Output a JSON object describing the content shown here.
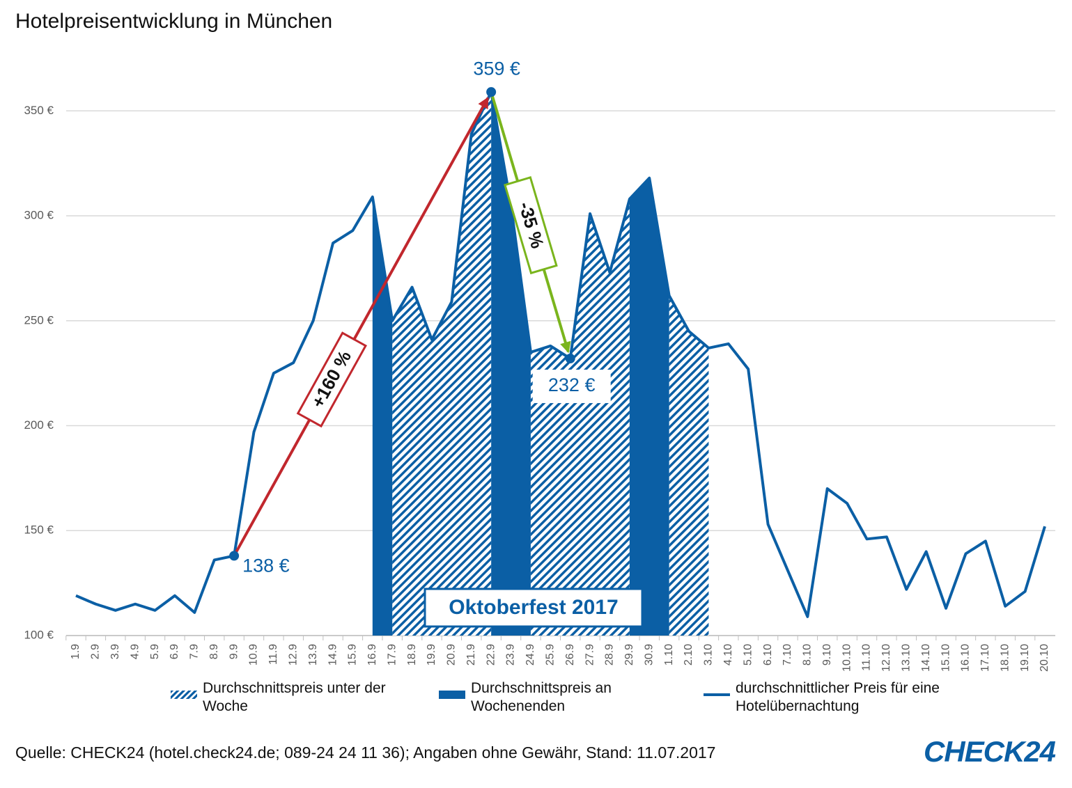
{
  "chart_data": {
    "type": "line",
    "title": "Hotelpreisentwicklung in München",
    "categories": [
      "1.9",
      "2.9",
      "3.9",
      "4.9",
      "5.9",
      "6.9",
      "7.9",
      "8.9",
      "9.9",
      "10.9",
      "11.9",
      "12.9",
      "13.9",
      "14.9",
      "15.9",
      "16.9",
      "17.9",
      "18.9",
      "19.9",
      "20.9",
      "21.9",
      "22.9",
      "23.9",
      "24.9",
      "25.9",
      "26.9",
      "27.9",
      "28.9",
      "29.9",
      "30.9",
      "1.10",
      "2.10",
      "3.10",
      "4.10",
      "5.10",
      "6.10",
      "7.10",
      "8.10",
      "9.10",
      "10.10",
      "11.10",
      "12.10",
      "13.10",
      "14.10",
      "15.10",
      "16.10",
      "17.10",
      "18.10",
      "19.10",
      "20.10"
    ],
    "series": [
      {
        "name": "Durchschnittspreis unter der Woche",
        "type": "area",
        "pattern": "hatch",
        "color": "#0b5fa5",
        "values": [
          null,
          null,
          null,
          null,
          null,
          null,
          null,
          null,
          null,
          null,
          null,
          null,
          null,
          null,
          null,
          null,
          250,
          266,
          241,
          259,
          339,
          359,
          null,
          235,
          238,
          232,
          301,
          273,
          308,
          null,
          262,
          245,
          237,
          null,
          null,
          null,
          null,
          null,
          null,
          null,
          null,
          null,
          null,
          null,
          null,
          null,
          null,
          null,
          null,
          null
        ]
      },
      {
        "name": "Durchschnittspreis an Wochenenden",
        "type": "area",
        "pattern": "solid",
        "color": "#0b5fa5",
        "values": [
          null,
          null,
          null,
          null,
          null,
          null,
          null,
          null,
          null,
          null,
          null,
          null,
          null,
          null,
          null,
          309,
          250,
          null,
          null,
          null,
          null,
          359,
          305,
          235,
          null,
          null,
          null,
          null,
          308,
          318,
          262,
          null,
          null,
          null,
          null,
          null,
          null,
          null,
          null,
          null,
          null,
          null,
          null,
          null,
          null,
          null,
          null,
          null,
          null,
          null
        ]
      },
      {
        "name": "durchschnittlicher Preis für eine Hotelübernachtung",
        "type": "line",
        "color": "#0b5fa5",
        "values": [
          119,
          115,
          112,
          115,
          112,
          119,
          111,
          136,
          138,
          197,
          225,
          230,
          250,
          287,
          293,
          309,
          250,
          266,
          241,
          259,
          339,
          359,
          305,
          235,
          238,
          232,
          301,
          273,
          308,
          318,
          262,
          245,
          237,
          239,
          227,
          153,
          131,
          109,
          170,
          163,
          146,
          147,
          122,
          140,
          113,
          139,
          145,
          114,
          121,
          152
        ],
        "value_labels": [
          null,
          null,
          null,
          null,
          null,
          null,
          null,
          null,
          "138 €",
          null,
          null,
          null,
          null,
          null,
          null,
          null,
          null,
          null,
          null,
          null,
          null,
          "359 €",
          null,
          null,
          null,
          "232 €",
          null,
          null,
          null,
          null,
          null,
          null,
          null,
          null,
          null,
          null,
          null,
          null,
          null,
          null,
          null,
          null,
          null,
          null,
          null,
          null,
          null,
          null,
          null,
          null
        ]
      }
    ],
    "ylim": [
      100,
      370
    ],
    "yticks": [
      {
        "value": 100,
        "label": "100 €"
      },
      {
        "value": 150,
        "label": "150 €"
      },
      {
        "value": 200,
        "label": "200 €"
      },
      {
        "value": 250,
        "label": "250 €"
      },
      {
        "value": 300,
        "label": "300 €"
      },
      {
        "value": 350,
        "label": "350 €"
      }
    ],
    "grid": true,
    "annotations": [
      {
        "text": "+160 %",
        "color": "#c1272d"
      },
      {
        "text": "-35 %",
        "color": "#7ab51d"
      }
    ],
    "highlight": "Oktoberfest 2017",
    "source": "Quelle: CHECK24 (hotel.check24.de; 089-24 24 11 36); Angaben ohne Gewähr, Stand: 11.07.2017",
    "logo": "CHECK24"
  }
}
